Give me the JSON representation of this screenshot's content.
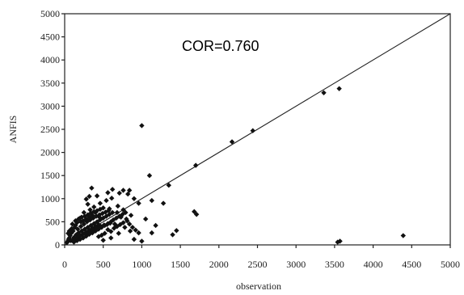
{
  "chart_data": {
    "type": "scatter",
    "xlabel": "observation",
    "ylabel": "ANFIS",
    "xlim": [
      0,
      5000
    ],
    "ylim": [
      0,
      5000
    ],
    "xticks": [
      "0",
      "500",
      "1000",
      "1500",
      "2000",
      "2500",
      "3000",
      "3500",
      "4000",
      "4500",
      "5000"
    ],
    "yticks": [
      "0",
      "500",
      "1000",
      "1500",
      "2000",
      "2500",
      "3000",
      "3500",
      "4000",
      "4500",
      "5000"
    ],
    "annotation": "COR=0.760",
    "reference_line": [
      [
        0,
        0
      ],
      [
        5000,
        5000
      ]
    ],
    "grid": false,
    "series": [
      {
        "marker": "diamond",
        "color": "#111111",
        "points": [
          [
            1000,
            2580
          ],
          [
            1100,
            1500
          ],
          [
            1350,
            1290
          ],
          [
            1700,
            1720
          ],
          [
            2170,
            2230
          ],
          [
            2440,
            2470
          ],
          [
            3360,
            3290
          ],
          [
            3560,
            3380
          ],
          [
            4390,
            200
          ],
          [
            3540,
            60
          ],
          [
            3570,
            80
          ],
          [
            1680,
            720
          ],
          [
            1710,
            660
          ],
          [
            1400,
            220
          ],
          [
            1450,
            310
          ],
          [
            1130,
            960
          ],
          [
            1280,
            900
          ],
          [
            1180,
            420
          ],
          [
            1050,
            560
          ],
          [
            1130,
            260
          ],
          [
            900,
            120
          ],
          [
            1000,
            80
          ],
          [
            900,
            1000
          ],
          [
            960,
            900
          ],
          [
            820,
            1100
          ],
          [
            760,
            1180
          ],
          [
            840,
            1180
          ],
          [
            710,
            1120
          ],
          [
            620,
            1200
          ],
          [
            560,
            1130
          ],
          [
            610,
            1010
          ],
          [
            350,
            1230
          ],
          [
            320,
            1050
          ],
          [
            420,
            1060
          ],
          [
            280,
            990
          ],
          [
            460,
            900
          ],
          [
            540,
            960
          ],
          [
            580,
            780
          ],
          [
            680,
            700
          ],
          [
            730,
            600
          ],
          [
            810,
            520
          ],
          [
            860,
            640
          ],
          [
            760,
            760
          ],
          [
            690,
            840
          ],
          [
            780,
            380
          ],
          [
            850,
            300
          ],
          [
            650,
            450
          ],
          [
            700,
            250
          ],
          [
            600,
            150
          ],
          [
            500,
            100
          ],
          [
            400,
            700
          ],
          [
            450,
            600
          ],
          [
            380,
            820
          ],
          [
            330,
            760
          ],
          [
            300,
            880
          ],
          [
            250,
            700
          ],
          [
            200,
            580
          ],
          [
            160,
            480
          ],
          [
            130,
            380
          ],
          [
            110,
            300
          ],
          [
            90,
            260
          ],
          [
            70,
            200
          ],
          [
            60,
            150
          ],
          [
            50,
            120
          ],
          [
            40,
            80
          ],
          [
            30,
            50
          ],
          [
            80,
            90
          ],
          [
            120,
            160
          ],
          [
            150,
            220
          ],
          [
            180,
            260
          ],
          [
            220,
            300
          ],
          [
            260,
            340
          ],
          [
            300,
            380
          ],
          [
            340,
            420
          ],
          [
            380,
            460
          ],
          [
            420,
            500
          ],
          [
            460,
            540
          ],
          [
            500,
            580
          ],
          [
            540,
            620
          ],
          [
            580,
            660
          ],
          [
            620,
            700
          ],
          [
            120,
            60
          ],
          [
            160,
            90
          ],
          [
            200,
            120
          ],
          [
            240,
            150
          ],
          [
            280,
            190
          ],
          [
            320,
            230
          ],
          [
            360,
            260
          ],
          [
            400,
            300
          ],
          [
            440,
            340
          ],
          [
            480,
            380
          ],
          [
            520,
            420
          ],
          [
            560,
            460
          ],
          [
            600,
            500
          ],
          [
            100,
            450
          ],
          [
            140,
            520
          ],
          [
            180,
            560
          ],
          [
            220,
            600
          ],
          [
            260,
            620
          ],
          [
            300,
            650
          ],
          [
            340,
            690
          ],
          [
            380,
            720
          ],
          [
            420,
            740
          ],
          [
            460,
            770
          ],
          [
            500,
            800
          ],
          [
            210,
            400
          ],
          [
            250,
            450
          ],
          [
            290,
            500
          ],
          [
            330,
            540
          ],
          [
            370,
            580
          ],
          [
            410,
            620
          ],
          [
            450,
            650
          ],
          [
            490,
            680
          ],
          [
            530,
            710
          ],
          [
            570,
            740
          ],
          [
            190,
            180
          ],
          [
            230,
            220
          ],
          [
            270,
            250
          ],
          [
            310,
            280
          ],
          [
            350,
            310
          ],
          [
            390,
            340
          ],
          [
            430,
            370
          ],
          [
            470,
            400
          ],
          [
            510,
            430
          ],
          [
            550,
            440
          ],
          [
            590,
            470
          ],
          [
            630,
            540
          ],
          [
            670,
            580
          ],
          [
            710,
            620
          ],
          [
            750,
            660
          ],
          [
            790,
            700
          ],
          [
            640,
            360
          ],
          [
            680,
            400
          ],
          [
            720,
            440
          ],
          [
            760,
            480
          ],
          [
            800,
            560
          ],
          [
            840,
            450
          ],
          [
            880,
            380
          ],
          [
            920,
            320
          ],
          [
            960,
            260
          ],
          [
            560,
            330
          ],
          [
            600,
            290
          ],
          [
            520,
            250
          ],
          [
            480,
            210
          ],
          [
            440,
            180
          ],
          [
            90,
            350
          ],
          [
            60,
            300
          ],
          [
            45,
            250
          ],
          [
            140,
            420
          ],
          [
            170,
            340
          ],
          [
            210,
            500
          ],
          [
            240,
            520
          ],
          [
            280,
            560
          ],
          [
            320,
            600
          ],
          [
            360,
            640
          ],
          [
            100,
            100
          ],
          [
            130,
            130
          ],
          [
            170,
            170
          ],
          [
            200,
            200
          ],
          [
            240,
            240
          ],
          [
            280,
            280
          ],
          [
            320,
            320
          ],
          [
            360,
            360
          ],
          [
            400,
            400
          ],
          [
            440,
            440
          ]
        ]
      }
    ]
  }
}
